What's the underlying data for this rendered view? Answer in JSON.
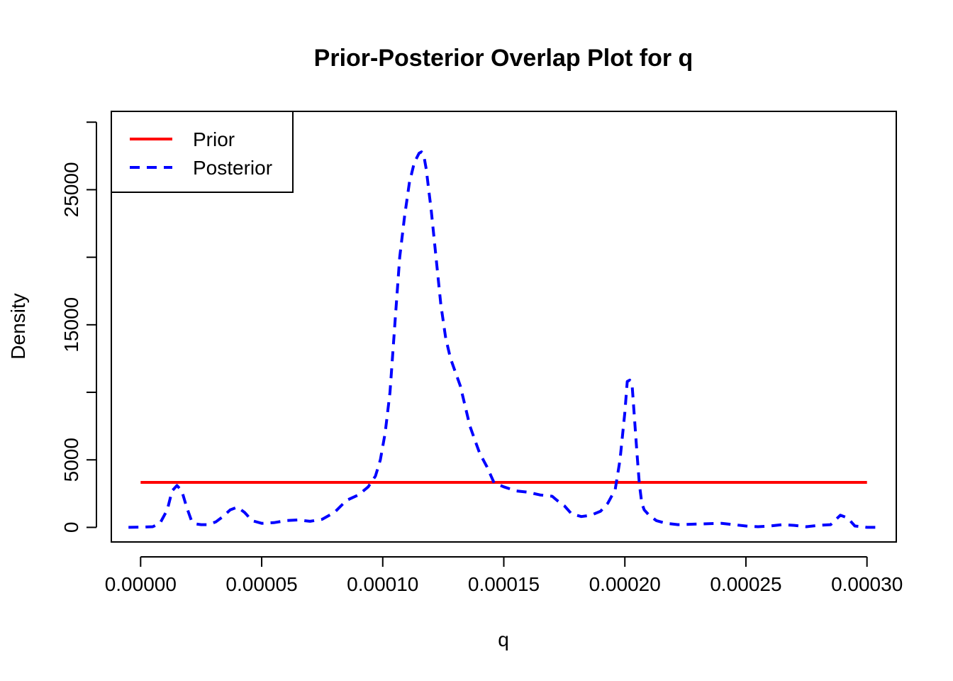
{
  "chart_data": {
    "type": "line",
    "title": "Prior-Posterior Overlap Plot for q",
    "xlabel": "q",
    "ylabel": "Density",
    "xlim": [
      -1.21e-05,
      0.0003121
    ],
    "ylim": [
      -1080,
      30800
    ],
    "x_ticks": [
      {
        "value": 0.0,
        "label": "0.00000"
      },
      {
        "value": 5e-05,
        "label": "0.00005"
      },
      {
        "value": 0.0001,
        "label": "0.00010"
      },
      {
        "value": 0.00015,
        "label": "0.00015"
      },
      {
        "value": 0.0002,
        "label": "0.00020"
      },
      {
        "value": 0.00025,
        "label": "0.00025"
      },
      {
        "value": 0.0003,
        "label": "0.00030"
      }
    ],
    "y_ticks": [
      {
        "value": 0,
        "label": "0"
      },
      {
        "value": 5000,
        "label": "5000"
      },
      {
        "value": 10000,
        "label": ""
      },
      {
        "value": 15000,
        "label": "15000"
      },
      {
        "value": 20000,
        "label": ""
      },
      {
        "value": 25000,
        "label": "25000"
      },
      {
        "value": 30000,
        "label": ""
      }
    ],
    "grid": false,
    "legend_position": "top-left",
    "series": [
      {
        "name": "Prior",
        "color": "#ff0000",
        "style": "solid",
        "x": [
          0.0,
          0.0003
        ],
        "y": [
          3333,
          3333
        ]
      },
      {
        "name": "Posterior",
        "color": "#0000ff",
        "style": "dashed",
        "x": [
          -5e-06,
          0.0,
          5e-06,
          8e-06,
          1.1e-05,
          1.3e-05,
          1.5e-05,
          1.7e-05,
          1.9e-05,
          2.1e-05,
          2.3e-05,
          2.5e-05,
          2.8e-05,
          3.1e-05,
          3.4e-05,
          3.7e-05,
          4e-05,
          4.3e-05,
          4.6e-05,
          5e-05,
          5.5e-05,
          6e-05,
          6.5e-05,
          7e-05,
          7.5e-05,
          8e-05,
          8.5e-05,
          9e-05,
          9.4e-05,
          9.7e-05,
          9.9e-05,
          0.000101,
          0.000103,
          0.000105,
          0.000107,
          0.000109,
          0.000111,
          0.000113,
          0.000115,
          0.000116,
          0.000117,
          0.000118,
          0.000119,
          0.00012,
          0.000122,
          0.000124,
          0.000126,
          0.000128,
          0.00013,
          0.000132,
          0.000134,
          0.000136,
          0.000138,
          0.00014,
          0.000143,
          0.000146,
          0.00015,
          0.000155,
          0.00016,
          0.000165,
          0.00017,
          0.000172,
          0.000175,
          0.000178,
          0.000182,
          0.000186,
          0.00019,
          0.000193,
          0.000196,
          0.000198,
          0.0002,
          0.000201,
          0.000202,
          0.000203,
          0.000204,
          0.000205,
          0.000206,
          0.000207,
          0.000208,
          0.00021,
          0.000213,
          0.000217,
          0.000222,
          0.00023,
          0.00024,
          0.00025,
          0.000255,
          0.00026,
          0.000265,
          0.00027,
          0.000275,
          0.00028,
          0.000285,
          0.000289,
          0.000292,
          0.000295,
          0.0003,
          0.000305
        ],
        "y": [
          0,
          20,
          50,
          300,
          1300,
          2700,
          3100,
          2700,
          1500,
          500,
          250,
          200,
          200,
          400,
          800,
          1300,
          1500,
          1100,
          500,
          300,
          350,
          500,
          550,
          450,
          600,
          1100,
          2000,
          2400,
          3000,
          3800,
          5000,
          7000,
          10000,
          15000,
          20000,
          23000,
          25500,
          27000,
          27700,
          27800,
          27500,
          26500,
          25000,
          23500,
          20000,
          16500,
          14000,
          12500,
          11500,
          10500,
          9000,
          7500,
          6500,
          5500,
          4500,
          3300,
          3000,
          2700,
          2600,
          2400,
          2300,
          2000,
          1600,
          1000,
          800,
          900,
          1200,
          1800,
          2800,
          5000,
          8500,
          10800,
          10900,
          10500,
          8000,
          5500,
          3200,
          1800,
          1300,
          900,
          500,
          300,
          200,
          250,
          300,
          100,
          50,
          100,
          200,
          150,
          50,
          150,
          200,
          900,
          700,
          100,
          0,
          0
        ]
      }
    ]
  }
}
